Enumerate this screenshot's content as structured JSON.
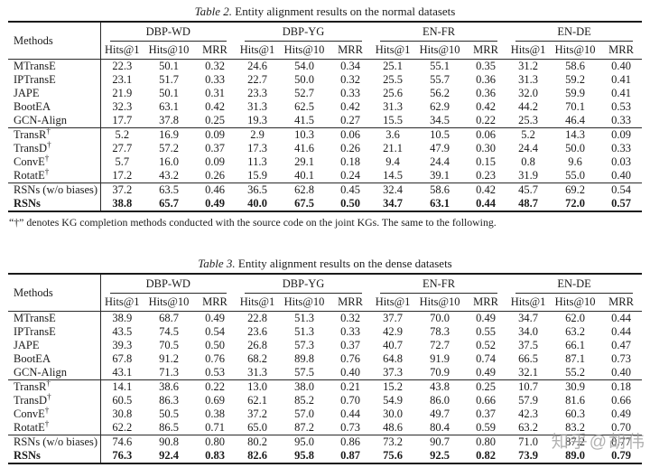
{
  "page": {
    "background": "#ffffff",
    "text_color": "#1b1b1b",
    "rule_color": "#2a2a2a"
  },
  "methods_header": "Methods",
  "sub_headers": [
    "Hits@1",
    "Hits@10",
    "MRR"
  ],
  "dagger_symbol": "†",
  "footnote": "“†” denotes KG completion methods conducted with the source code on the joint KGs. The same to the following.",
  "watermark": {
    "text": "知乎@胡伟",
    "color": "#9e9e9e"
  },
  "tables": [
    {
      "id": "table-2",
      "caption_label": "Table 2.",
      "caption_text": " Entity alignment results on the normal datasets",
      "column_groups": [
        "DBP-WD",
        "DBP-YG",
        "EN-FR",
        "EN-DE"
      ],
      "row_groups": [
        {
          "rows": [
            {
              "method": "MTransE",
              "dagger": false,
              "bold": false,
              "values": [
                "22.3",
                "50.1",
                "0.32",
                "24.6",
                "54.0",
                "0.34",
                "25.1",
                "55.1",
                "0.35",
                "31.2",
                "58.6",
                "0.40"
              ]
            },
            {
              "method": "IPTransE",
              "dagger": false,
              "bold": false,
              "values": [
                "23.1",
                "51.7",
                "0.33",
                "22.7",
                "50.0",
                "0.32",
                "25.5",
                "55.7",
                "0.36",
                "31.3",
                "59.2",
                "0.41"
              ]
            },
            {
              "method": "JAPE",
              "dagger": false,
              "bold": false,
              "values": [
                "21.9",
                "50.1",
                "0.31",
                "23.3",
                "52.7",
                "0.33",
                "25.6",
                "56.2",
                "0.36",
                "32.0",
                "59.9",
                "0.41"
              ]
            },
            {
              "method": "BootEA",
              "dagger": false,
              "bold": false,
              "values": [
                "32.3",
                "63.1",
                "0.42",
                "31.3",
                "62.5",
                "0.42",
                "31.3",
                "62.9",
                "0.42",
                "44.2",
                "70.1",
                "0.53"
              ]
            },
            {
              "method": "GCN-Align",
              "dagger": false,
              "bold": false,
              "values": [
                "17.7",
                "37.8",
                "0.25",
                "19.3",
                "41.5",
                "0.27",
                "15.5",
                "34.5",
                "0.22",
                "25.3",
                "46.4",
                "0.33"
              ]
            }
          ]
        },
        {
          "rows": [
            {
              "method": "TransR",
              "dagger": true,
              "bold": false,
              "values": [
                "5.2",
                "16.9",
                "0.09",
                "2.9",
                "10.3",
                "0.06",
                "3.6",
                "10.5",
                "0.06",
                "5.2",
                "14.3",
                "0.09"
              ]
            },
            {
              "method": "TransD",
              "dagger": true,
              "bold": false,
              "values": [
                "27.7",
                "57.2",
                "0.37",
                "17.3",
                "41.6",
                "0.26",
                "21.1",
                "47.9",
                "0.30",
                "24.4",
                "50.0",
                "0.33"
              ]
            },
            {
              "method": "ConvE",
              "dagger": true,
              "bold": false,
              "values": [
                "5.7",
                "16.0",
                "0.09",
                "11.3",
                "29.1",
                "0.18",
                "9.4",
                "24.4",
                "0.15",
                "0.8",
                "9.6",
                "0.03"
              ]
            },
            {
              "method": "RotatE",
              "dagger": true,
              "bold": false,
              "values": [
                "17.2",
                "43.2",
                "0.26",
                "15.9",
                "40.1",
                "0.24",
                "14.5",
                "39.1",
                "0.23",
                "31.9",
                "55.0",
                "0.40"
              ]
            }
          ]
        },
        {
          "rows": [
            {
              "method": "RSNs (w/o biases)",
              "dagger": false,
              "bold": false,
              "values": [
                "37.2",
                "63.5",
                "0.46",
                "36.5",
                "62.8",
                "0.45",
                "32.4",
                "58.6",
                "0.42",
                "45.7",
                "69.2",
                "0.54"
              ]
            },
            {
              "method": "RSNs",
              "dagger": false,
              "bold": true,
              "values": [
                "38.8",
                "65.7",
                "0.49",
                "40.0",
                "67.5",
                "0.50",
                "34.7",
                "63.1",
                "0.44",
                "48.7",
                "72.0",
                "0.57"
              ]
            }
          ]
        }
      ]
    },
    {
      "id": "table-3",
      "caption_label": "Table 3.",
      "caption_text": " Entity alignment results on the dense datasets",
      "column_groups": [
        "DBP-WD",
        "DBP-YG",
        "EN-FR",
        "EN-DE"
      ],
      "row_groups": [
        {
          "rows": [
            {
              "method": "MTransE",
              "dagger": false,
              "bold": false,
              "values": [
                "38.9",
                "68.7",
                "0.49",
                "22.8",
                "51.3",
                "0.32",
                "37.7",
                "70.0",
                "0.49",
                "34.7",
                "62.0",
                "0.44"
              ]
            },
            {
              "method": "IPTransE",
              "dagger": false,
              "bold": false,
              "values": [
                "43.5",
                "74.5",
                "0.54",
                "23.6",
                "51.3",
                "0.33",
                "42.9",
                "78.3",
                "0.55",
                "34.0",
                "63.2",
                "0.44"
              ]
            },
            {
              "method": "JAPE",
              "dagger": false,
              "bold": false,
              "values": [
                "39.3",
                "70.5",
                "0.50",
                "26.8",
                "57.3",
                "0.37",
                "40.7",
                "72.7",
                "0.52",
                "37.5",
                "66.1",
                "0.47"
              ]
            },
            {
              "method": "BootEA",
              "dagger": false,
              "bold": false,
              "values": [
                "67.8",
                "91.2",
                "0.76",
                "68.2",
                "89.8",
                "0.76",
                "64.8",
                "91.9",
                "0.74",
                "66.5",
                "87.1",
                "0.73"
              ]
            },
            {
              "method": "GCN-Align",
              "dagger": false,
              "bold": false,
              "values": [
                "43.1",
                "71.3",
                "0.53",
                "31.3",
                "57.5",
                "0.40",
                "37.3",
                "70.9",
                "0.49",
                "32.1",
                "55.2",
                "0.40"
              ]
            }
          ]
        },
        {
          "rows": [
            {
              "method": "TransR",
              "dagger": true,
              "bold": false,
              "values": [
                "14.1",
                "38.6",
                "0.22",
                "13.0",
                "38.0",
                "0.21",
                "15.2",
                "43.8",
                "0.25",
                "10.7",
                "30.9",
                "0.18"
              ]
            },
            {
              "method": "TransD",
              "dagger": true,
              "bold": false,
              "values": [
                "60.5",
                "86.3",
                "0.69",
                "62.1",
                "85.2",
                "0.70",
                "54.9",
                "86.0",
                "0.66",
                "57.9",
                "81.6",
                "0.66"
              ]
            },
            {
              "method": "ConvE",
              "dagger": true,
              "bold": false,
              "values": [
                "30.8",
                "50.5",
                "0.38",
                "37.2",
                "57.0",
                "0.44",
                "30.0",
                "49.7",
                "0.37",
                "42.3",
                "60.3",
                "0.49"
              ]
            },
            {
              "method": "RotatE",
              "dagger": true,
              "bold": false,
              "values": [
                "62.2",
                "86.5",
                "0.71",
                "65.0",
                "87.2",
                "0.73",
                "48.6",
                "80.4",
                "0.59",
                "63.2",
                "83.2",
                "0.70"
              ]
            }
          ]
        },
        {
          "rows": [
            {
              "method": "RSNs (w/o biases)",
              "dagger": false,
              "bold": false,
              "values": [
                "74.6",
                "90.8",
                "0.80",
                "80.2",
                "95.0",
                "0.86",
                "73.2",
                "90.7",
                "0.80",
                "71.0",
                "87.2",
                "0.77"
              ]
            },
            {
              "method": "RSNs",
              "dagger": false,
              "bold": true,
              "values": [
                "76.3",
                "92.4",
                "0.83",
                "82.6",
                "95.8",
                "0.87",
                "75.6",
                "92.5",
                "0.82",
                "73.9",
                "89.0",
                "0.79"
              ]
            }
          ]
        }
      ]
    }
  ]
}
